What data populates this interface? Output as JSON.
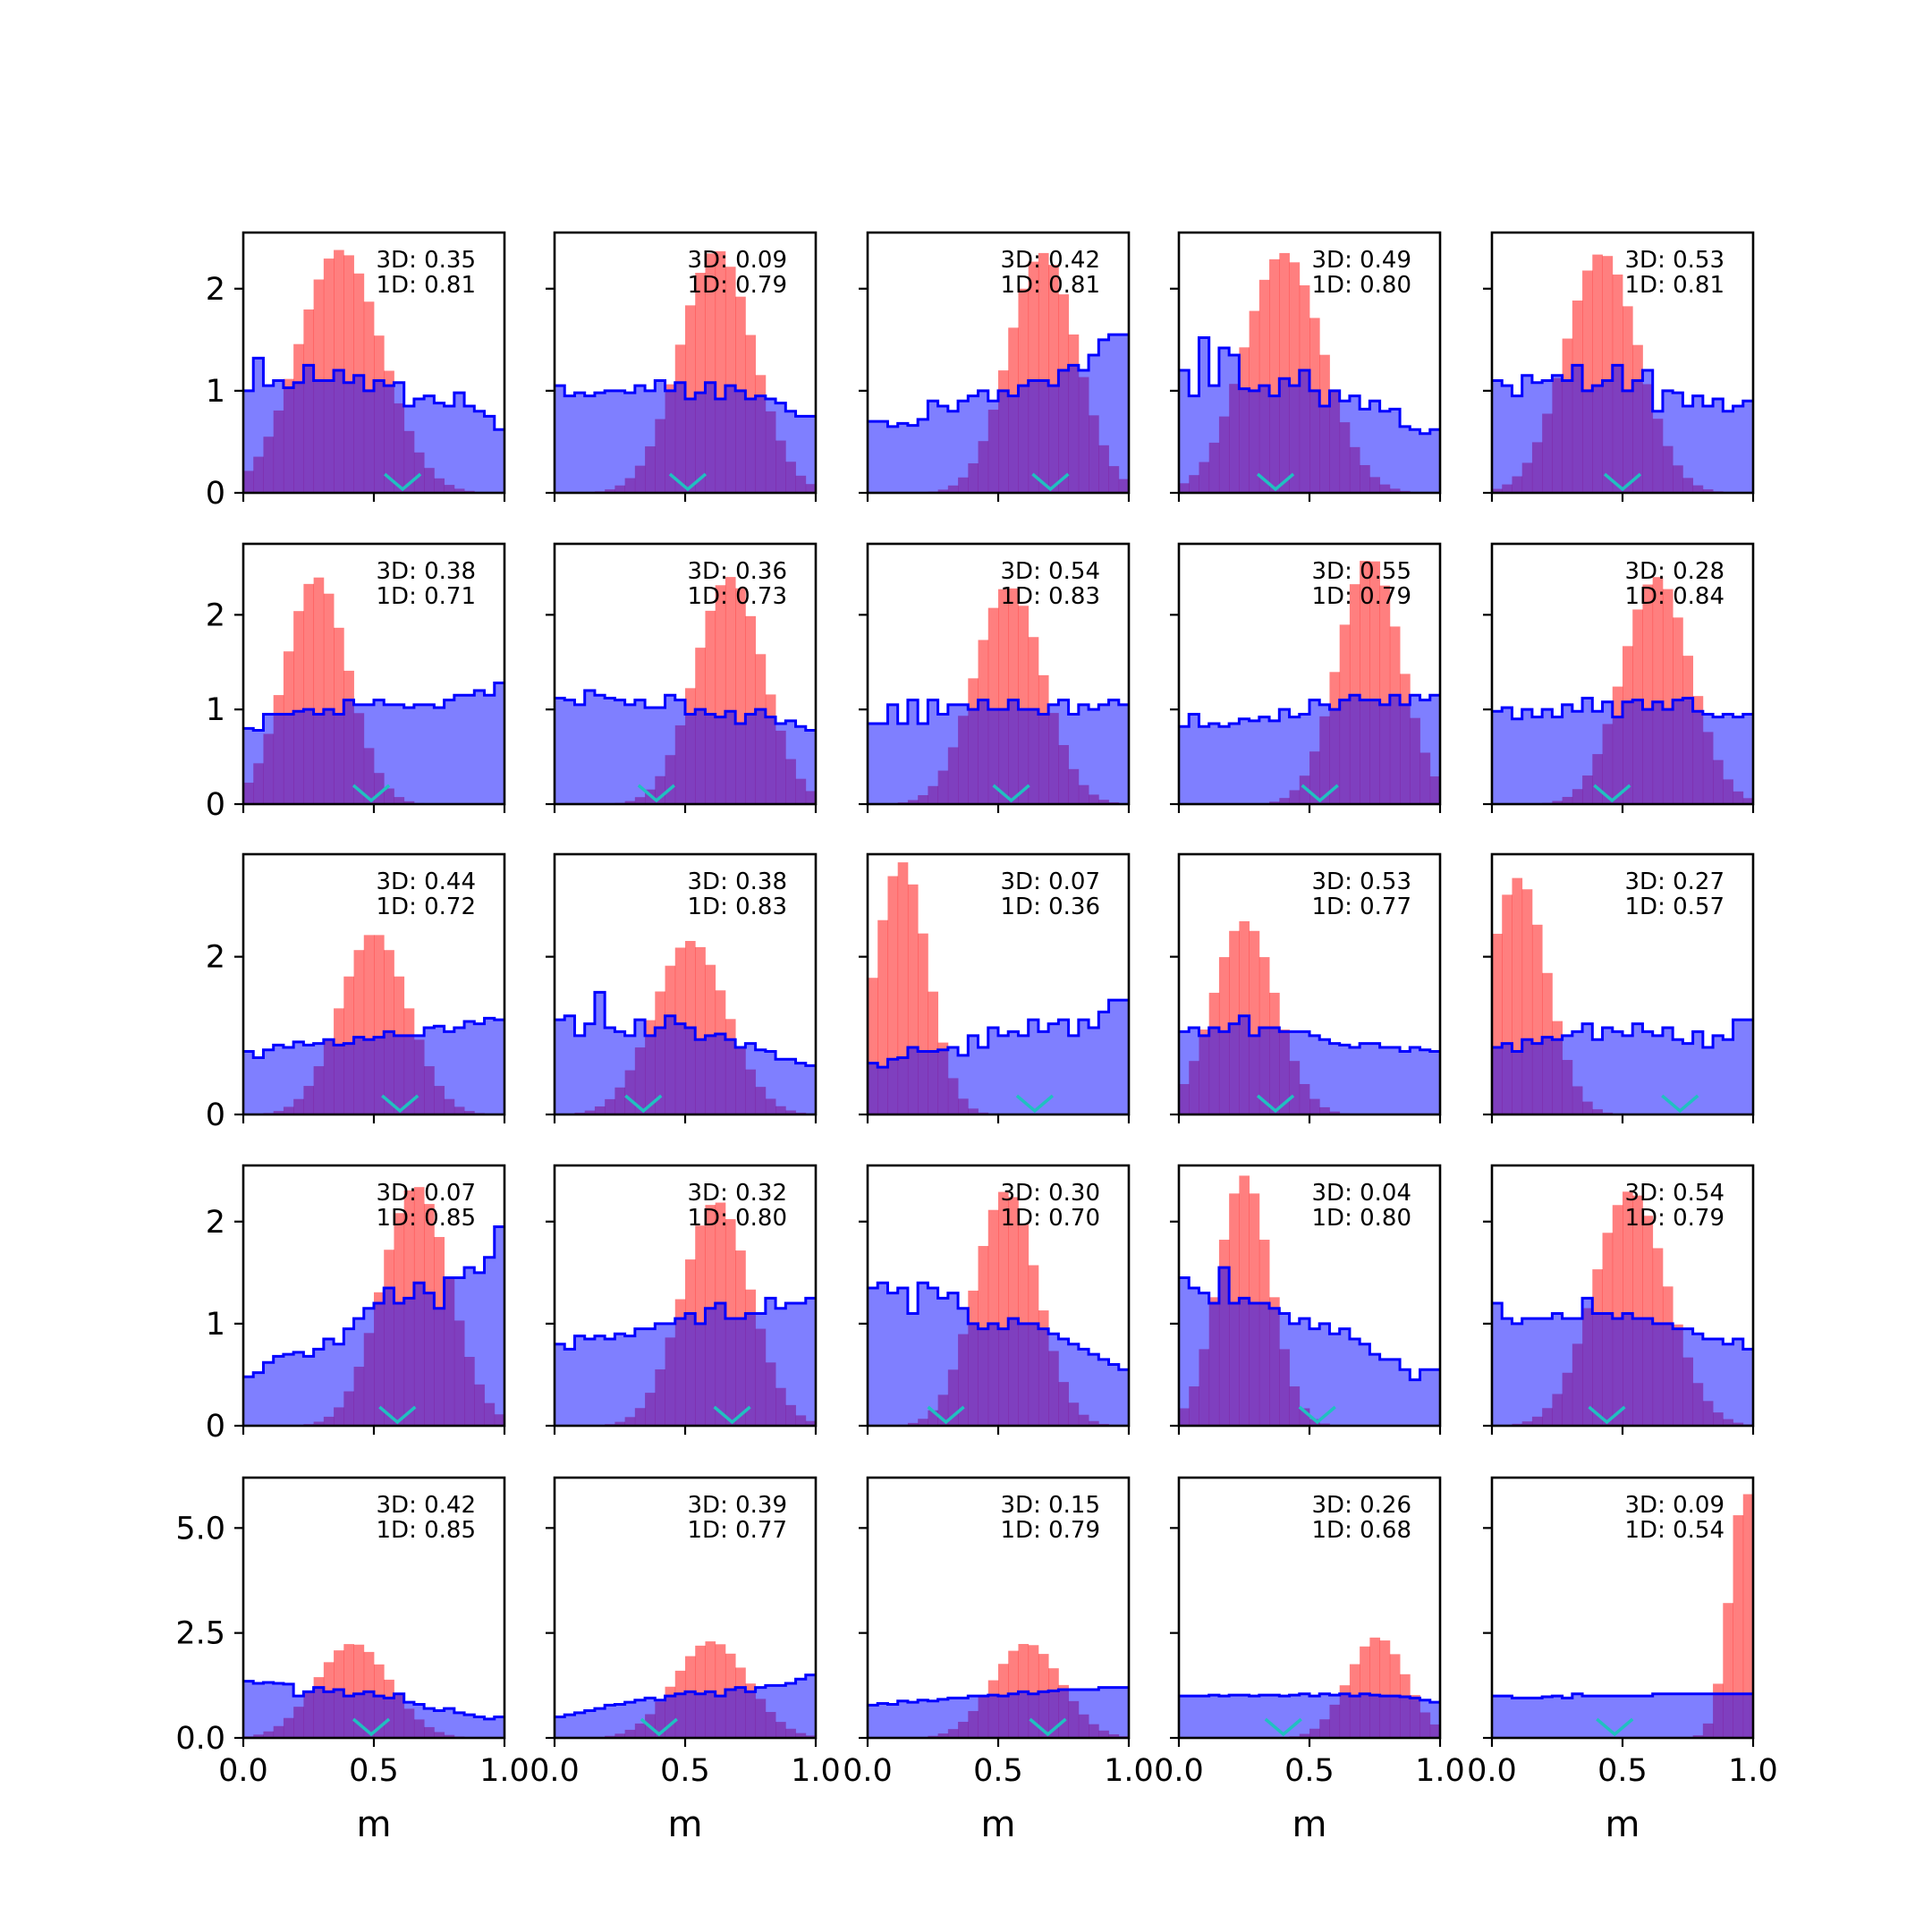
{
  "chart_data": {
    "type": "histogram-grid",
    "rows": 5,
    "cols": 5,
    "xlim": [
      0,
      1
    ],
    "xticks": [
      "0.0",
      "0.5",
      "1.0"
    ],
    "xlabel": "m",
    "row_ylims": [
      [
        0,
        2.55
      ],
      [
        0,
        2.75
      ],
      [
        0,
        3.3
      ],
      [
        0,
        2.55
      ],
      [
        0,
        6.2
      ]
    ],
    "row_yticks": [
      [
        "0",
        "1",
        "2"
      ],
      [
        "0",
        "1",
        "2"
      ],
      [
        "0",
        "2"
      ],
      [
        "0",
        "1",
        "2"
      ],
      [
        "0.0",
        "2.5",
        "5.0"
      ]
    ],
    "series": [
      {
        "name": "",
        "color": "#0000ff",
        "style": "filled step, alpha 0.5"
      },
      {
        "name": "",
        "color": "#ff0000",
        "style": "filled bars, alpha 0.5"
      }
    ],
    "marker_color": "#20c0c0",
    "panels": [
      {
        "ann3d": "3D: 0.35",
        "ann1d": "1D: 0.81",
        "blue": [
          1.0,
          1.32,
          1.05,
          1.1,
          1.03,
          1.08,
          1.25,
          1.1,
          1.1,
          1.2,
          1.08,
          1.15,
          1.0,
          1.1,
          1.05,
          1.08,
          0.85,
          0.92,
          0.95,
          0.88,
          0.85,
          0.98,
          0.85,
          0.8,
          0.75,
          0.62
        ],
        "redMu": 0.37,
        "redSig": 0.16,
        "redPeak": 2.38,
        "marker": 0.61
      },
      {
        "ann3d": "3D: 0.09",
        "ann1d": "1D: 0.79",
        "blue": [
          1.05,
          0.95,
          0.98,
          0.95,
          0.98,
          1.0,
          1.0,
          0.98,
          1.05,
          1.0,
          1.1,
          1.0,
          1.08,
          0.92,
          0.98,
          1.08,
          0.92,
          1.05,
          1.0,
          0.92,
          0.95,
          0.92,
          0.88,
          0.8,
          0.75,
          0.75
        ],
        "redMu": 0.62,
        "redSig": 0.14,
        "redPeak": 2.38,
        "marker": 0.51
      },
      {
        "ann3d": "3D: 0.42",
        "ann1d": "1D: 0.81",
        "blue": [
          0.7,
          0.7,
          0.65,
          0.68,
          0.66,
          0.72,
          0.9,
          0.85,
          0.8,
          0.9,
          0.95,
          1.0,
          0.9,
          1.0,
          0.95,
          1.05,
          1.1,
          1.1,
          1.05,
          1.2,
          1.25,
          1.2,
          1.35,
          1.5,
          1.55,
          1.55
        ],
        "redMu": 0.67,
        "redSig": 0.13,
        "redPeak": 2.35,
        "marker": 0.7
      },
      {
        "ann3d": "3D: 0.49",
        "ann1d": "1D: 0.80",
        "blue": [
          1.2,
          0.95,
          1.52,
          1.05,
          1.42,
          1.35,
          1.02,
          1.0,
          1.05,
          0.95,
          1.12,
          1.05,
          1.2,
          1.0,
          0.85,
          1.0,
          0.9,
          0.95,
          0.82,
          0.9,
          0.8,
          0.82,
          0.65,
          0.62,
          0.58,
          0.62
        ],
        "redMu": 0.4,
        "redSig": 0.15,
        "redPeak": 2.35,
        "marker": 0.37
      },
      {
        "ann3d": "3D: 0.53",
        "ann1d": "1D: 0.81",
        "blue": [
          1.1,
          1.05,
          0.95,
          1.15,
          1.08,
          1.1,
          1.15,
          1.1,
          1.25,
          1.0,
          1.05,
          1.1,
          1.25,
          1.0,
          1.1,
          1.2,
          0.8,
          1.0,
          0.98,
          0.85,
          0.95,
          0.85,
          0.92,
          0.8,
          0.85,
          0.9
        ],
        "redMu": 0.42,
        "redSig": 0.14,
        "redPeak": 2.35,
        "marker": 0.5
      },
      {
        "ann3d": "3D: 0.38",
        "ann1d": "1D: 0.71",
        "blue": [
          0.8,
          0.78,
          0.95,
          0.95,
          0.95,
          0.98,
          1.0,
          0.95,
          1.0,
          0.95,
          1.1,
          1.05,
          1.05,
          1.1,
          1.05,
          1.05,
          1.02,
          1.05,
          1.05,
          1.02,
          1.1,
          1.15,
          1.15,
          1.2,
          1.15,
          1.28
        ],
        "redMu": 0.28,
        "redSig": 0.12,
        "redPeak": 2.4,
        "marker": 0.49
      },
      {
        "ann3d": "3D: 0.36",
        "ann1d": "1D: 0.73",
        "blue": [
          1.12,
          1.1,
          1.05,
          1.2,
          1.15,
          1.12,
          1.1,
          1.05,
          1.1,
          1.02,
          1.02,
          1.15,
          1.1,
          0.95,
          1.0,
          0.95,
          0.92,
          0.98,
          0.85,
          0.95,
          1.0,
          0.92,
          0.85,
          0.88,
          0.82,
          0.78
        ],
        "redMu": 0.67,
        "redSig": 0.13,
        "redPeak": 2.4,
        "marker": 0.39
      },
      {
        "ann3d": "3D: 0.54",
        "ann1d": "1D: 0.83",
        "blue": [
          0.85,
          0.85,
          1.05,
          0.85,
          1.1,
          0.85,
          1.1,
          0.95,
          1.05,
          1.05,
          1.0,
          1.1,
          1.0,
          1.0,
          1.1,
          1.0,
          1.0,
          0.95,
          1.05,
          1.1,
          0.95,
          1.05,
          1.0,
          1.05,
          1.1,
          1.05
        ],
        "redMu": 0.54,
        "redSig": 0.13,
        "redPeak": 2.3,
        "marker": 0.55
      },
      {
        "ann3d": "3D: 0.55",
        "ann1d": "1D: 0.79",
        "blue": [
          0.82,
          0.95,
          0.82,
          0.85,
          0.82,
          0.85,
          0.9,
          0.88,
          0.92,
          0.88,
          1.0,
          0.92,
          0.95,
          1.1,
          1.05,
          1.0,
          1.1,
          1.15,
          1.1,
          1.1,
          1.05,
          1.15,
          1.05,
          1.15,
          1.1,
          1.15
        ],
        "redMu": 0.73,
        "redSig": 0.12,
        "redPeak": 2.6,
        "marker": 0.54
      },
      {
        "ann3d": "3D: 0.28",
        "ann1d": "1D: 0.84",
        "blue": [
          0.98,
          1.02,
          0.9,
          1.0,
          0.92,
          1.0,
          0.92,
          1.05,
          0.98,
          1.12,
          0.98,
          1.08,
          0.92,
          1.08,
          1.1,
          1.0,
          1.08,
          1.0,
          1.1,
          1.12,
          0.98,
          0.95,
          0.92,
          0.95,
          0.92,
          0.95
        ],
        "redMu": 0.63,
        "redSig": 0.13,
        "redPeak": 2.4,
        "marker": 0.46
      },
      {
        "ann3d": "3D: 0.44",
        "ann1d": "1D: 0.72",
        "blue": [
          0.8,
          0.72,
          0.82,
          0.88,
          0.85,
          0.92,
          0.88,
          0.9,
          0.95,
          0.88,
          0.9,
          0.98,
          0.95,
          0.98,
          1.05,
          1.0,
          1.0,
          1.0,
          1.1,
          1.12,
          1.05,
          1.1,
          1.18,
          1.15,
          1.22,
          1.2
        ],
        "redMu": 0.5,
        "redSig": 0.13,
        "redPeak": 2.3,
        "marker": 0.6
      },
      {
        "ann3d": "3D: 0.38",
        "ann1d": "1D: 0.83",
        "blue": [
          1.2,
          1.25,
          1.0,
          1.15,
          1.55,
          1.1,
          1.05,
          1.0,
          1.2,
          1.0,
          1.1,
          1.25,
          1.15,
          1.1,
          0.95,
          1.0,
          1.02,
          0.95,
          0.85,
          0.9,
          0.82,
          0.8,
          0.7,
          0.7,
          0.65,
          0.62
        ],
        "redMu": 0.52,
        "redSig": 0.14,
        "redPeak": 2.2,
        "marker": 0.34
      },
      {
        "ann3d": "3D: 0.07",
        "ann1d": "1D: 0.36",
        "blue": [
          0.65,
          0.6,
          0.7,
          0.72,
          0.85,
          0.8,
          0.8,
          0.82,
          0.85,
          0.75,
          1.0,
          0.85,
          1.1,
          1.0,
          1.05,
          1.0,
          1.2,
          1.05,
          1.15,
          1.2,
          1.0,
          1.2,
          1.1,
          1.3,
          1.45,
          1.45
        ],
        "redMu": 0.13,
        "redSig": 0.1,
        "redPeak": 3.2,
        "marker": 0.64
      },
      {
        "ann3d": "3D: 0.53",
        "ann1d": "1D: 0.77",
        "blue": [
          1.05,
          1.1,
          1.0,
          1.1,
          1.05,
          1.15,
          1.25,
          1.0,
          1.1,
          1.1,
          1.05,
          1.05,
          1.05,
          1.0,
          0.95,
          0.9,
          0.88,
          0.85,
          0.9,
          0.9,
          0.85,
          0.85,
          0.8,
          0.85,
          0.82,
          0.8
        ],
        "redMu": 0.25,
        "redSig": 0.12,
        "redPeak": 2.45,
        "marker": 0.37
      },
      {
        "ann3d": "3D: 0.27",
        "ann1d": "1D: 0.57",
        "blue": [
          0.85,
          0.9,
          0.8,
          0.95,
          0.9,
          0.98,
          0.95,
          1.0,
          1.05,
          1.15,
          0.95,
          1.1,
          1.05,
          1.0,
          1.15,
          1.05,
          1.0,
          1.1,
          0.95,
          0.9,
          1.05,
          0.85,
          1.0,
          0.95,
          1.2,
          1.2
        ],
        "redMu": 0.1,
        "redSig": 0.11,
        "redPeak": 3.0,
        "marker": 0.72
      },
      {
        "ann3d": "3D: 0.07",
        "ann1d": "1D: 0.85",
        "blue": [
          0.48,
          0.52,
          0.62,
          0.68,
          0.7,
          0.72,
          0.68,
          0.75,
          0.85,
          0.8,
          0.95,
          1.05,
          1.15,
          1.2,
          1.35,
          1.2,
          1.25,
          1.4,
          1.3,
          1.15,
          1.45,
          1.45,
          1.55,
          1.5,
          1.65,
          1.95
        ],
        "redMu": 0.66,
        "redSig": 0.13,
        "redPeak": 2.35,
        "marker": 0.59
      },
      {
        "ann3d": "3D: 0.32",
        "ann1d": "1D: 0.80",
        "blue": [
          0.8,
          0.75,
          0.88,
          0.85,
          0.88,
          0.85,
          0.9,
          0.88,
          0.95,
          0.95,
          1.0,
          1.0,
          1.05,
          1.1,
          1.0,
          1.15,
          1.2,
          1.05,
          1.05,
          1.1,
          1.1,
          1.25,
          1.15,
          1.2,
          1.2,
          1.25
        ],
        "redMu": 0.62,
        "redSig": 0.13,
        "redPeak": 2.2,
        "marker": 0.68
      },
      {
        "ann3d": "3D: 0.30",
        "ann1d": "1D: 0.70",
        "blue": [
          1.35,
          1.4,
          1.3,
          1.35,
          1.1,
          1.4,
          1.35,
          1.25,
          1.3,
          1.15,
          1.0,
          0.95,
          1.0,
          0.95,
          1.05,
          1.0,
          1.0,
          0.95,
          0.9,
          0.85,
          0.8,
          0.75,
          0.7,
          0.65,
          0.6,
          0.55
        ],
        "redMu": 0.53,
        "redSig": 0.12,
        "redPeak": 2.3,
        "marker": 0.3
      },
      {
        "ann3d": "3D: 0.04",
        "ann1d": "1D: 0.80",
        "blue": [
          1.45,
          1.35,
          1.3,
          1.2,
          1.55,
          1.2,
          1.25,
          1.2,
          1.2,
          1.15,
          1.1,
          1.0,
          1.05,
          0.95,
          1.0,
          0.9,
          0.95,
          0.85,
          0.8,
          0.7,
          0.65,
          0.65,
          0.55,
          0.45,
          0.55,
          0.55
        ],
        "redMu": 0.25,
        "redSig": 0.1,
        "redPeak": 2.45,
        "marker": 0.53
      },
      {
        "ann3d": "3D: 0.54",
        "ann1d": "1D: 0.79",
        "blue": [
          1.2,
          1.05,
          1.0,
          1.05,
          1.05,
          1.05,
          1.1,
          1.05,
          1.05,
          1.25,
          1.1,
          1.1,
          1.05,
          1.1,
          1.05,
          1.05,
          1.0,
          1.0,
          0.95,
          0.95,
          0.9,
          0.85,
          0.85,
          0.8,
          0.85,
          0.75
        ],
        "redMu": 0.53,
        "redSig": 0.14,
        "redPeak": 2.3,
        "marker": 0.44
      },
      {
        "ann3d": "3D: 0.42",
        "ann1d": "1D: 0.85",
        "blue": [
          1.35,
          1.3,
          1.32,
          1.3,
          1.28,
          1.0,
          1.1,
          1.2,
          1.1,
          1.15,
          1.0,
          1.05,
          1.1,
          1.0,
          0.95,
          1.05,
          0.85,
          0.8,
          0.7,
          0.65,
          0.7,
          0.6,
          0.55,
          0.5,
          0.45,
          0.5
        ],
        "redMu": 0.42,
        "redSig": 0.14,
        "redPeak": 2.25,
        "marker": 0.49
      },
      {
        "ann3d": "3D: 0.39",
        "ann1d": "1D: 0.77",
        "blue": [
          0.5,
          0.55,
          0.6,
          0.65,
          0.7,
          0.78,
          0.8,
          0.85,
          0.9,
          0.95,
          0.9,
          1.0,
          1.05,
          1.1,
          1.05,
          1.1,
          1.0,
          1.15,
          1.2,
          1.1,
          1.2,
          1.25,
          1.25,
          1.3,
          1.4,
          1.5
        ],
        "redMu": 0.6,
        "redSig": 0.14,
        "redPeak": 2.3,
        "marker": 0.4
      },
      {
        "ann3d": "3D: 0.15",
        "ann1d": "1D: 0.79",
        "blue": [
          0.78,
          0.82,
          0.8,
          0.88,
          0.85,
          0.9,
          0.88,
          0.92,
          0.95,
          0.95,
          1.0,
          1.0,
          1.02,
          1.0,
          1.05,
          1.1,
          1.05,
          1.1,
          1.12,
          1.15,
          1.15,
          1.15,
          1.15,
          1.2,
          1.2,
          1.2
        ],
        "redMu": 0.61,
        "redSig": 0.13,
        "redPeak": 2.25,
        "marker": 0.69
      },
      {
        "ann3d": "3D: 0.26",
        "ann1d": "1D: 0.68",
        "blue": [
          1.0,
          1.0,
          1.0,
          1.02,
          1.0,
          1.02,
          1.02,
          1.0,
          1.02,
          1.02,
          1.0,
          1.02,
          1.05,
          1.0,
          1.05,
          1.02,
          1.05,
          1.0,
          1.05,
          1.02,
          1.0,
          1.0,
          0.98,
          0.95,
          0.9,
          0.85
        ],
        "redMu": 0.76,
        "redSig": 0.11,
        "redPeak": 2.4,
        "marker": 0.4
      },
      {
        "ann3d": "3D: 0.09",
        "ann1d": "1D: 0.54",
        "blue": [
          1.0,
          1.0,
          0.95,
          0.95,
          0.95,
          0.98,
          1.0,
          0.95,
          1.05,
          1.0,
          1.0,
          1.0,
          1.0,
          1.0,
          1.0,
          1.0,
          1.05,
          1.05,
          1.05,
          1.05,
          1.05,
          1.05,
          1.05,
          1.05,
          1.05,
          1.05
        ],
        "redMu": 0.97,
        "redSig": 0.06,
        "redPeak": 5.9,
        "marker": 0.47
      }
    ]
  }
}
